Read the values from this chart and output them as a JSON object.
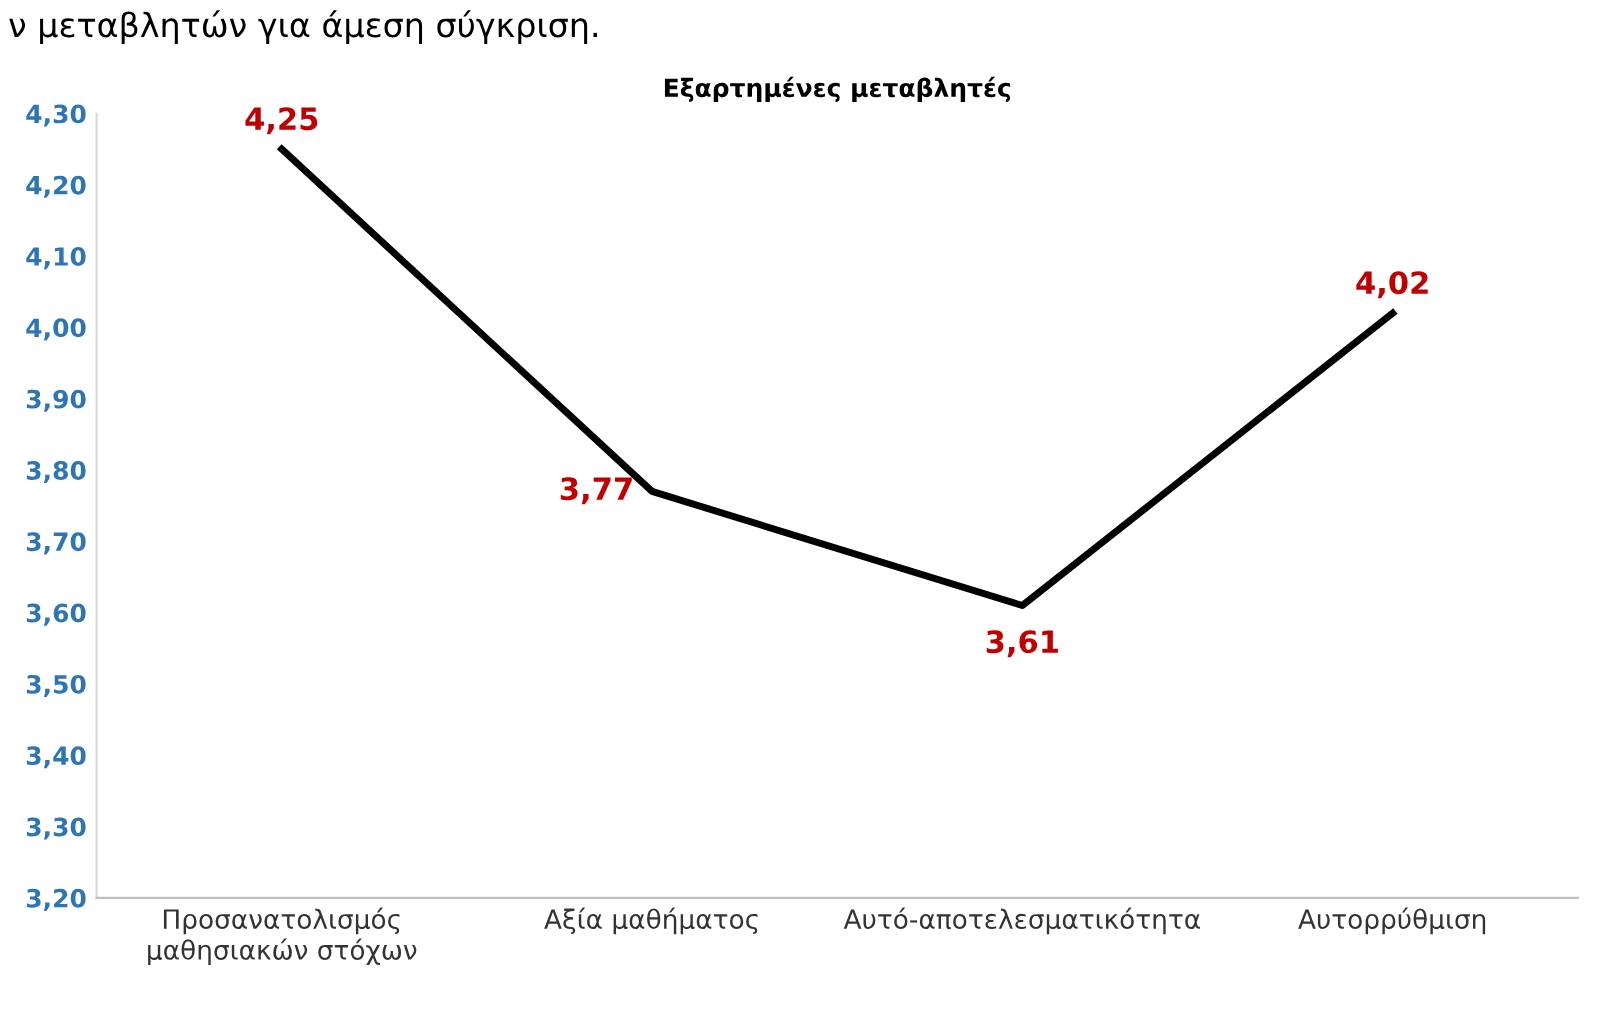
{
  "chart_data": {
    "type": "line",
    "title": "Εξαρτημένες μεταβλητές",
    "annotations": [
      "ν μεταβλητών για άμεση σύγκριση."
    ],
    "categories": [
      "Προσανατολισμός\nμαθησιακών στόχων",
      "Αξία μαθήματος",
      "Αυτό-αποτελεσματικότητα",
      "Αυτορρύθμιση"
    ],
    "series": [
      {
        "color": "#000000",
        "values": [
          4.25,
          3.77,
          3.61,
          4.02
        ],
        "value_labels": [
          "4,25",
          "3,77",
          "3,61",
          "4,02"
        ]
      }
    ],
    "ylim": [
      3.2,
      4.3
    ],
    "yticks": [
      {
        "value": 3.2,
        "label": "3,20"
      },
      {
        "value": 3.3,
        "label": "3,30"
      },
      {
        "value": 3.4,
        "label": "3,40"
      },
      {
        "value": 3.5,
        "label": "3,50"
      },
      {
        "value": 3.6,
        "label": "3,60"
      },
      {
        "value": 3.7,
        "label": "3,70"
      },
      {
        "value": 3.8,
        "label": "3,80"
      },
      {
        "value": 3.9,
        "label": "3,90"
      },
      {
        "value": 4.0,
        "label": "4,00"
      },
      {
        "value": 4.1,
        "label": "4,10"
      },
      {
        "value": 4.2,
        "label": "4,20"
      },
      {
        "value": 4.3,
        "label": "4,30"
      }
    ],
    "grid": false,
    "legend": false,
    "marker": "none",
    "line_style": "solid"
  }
}
